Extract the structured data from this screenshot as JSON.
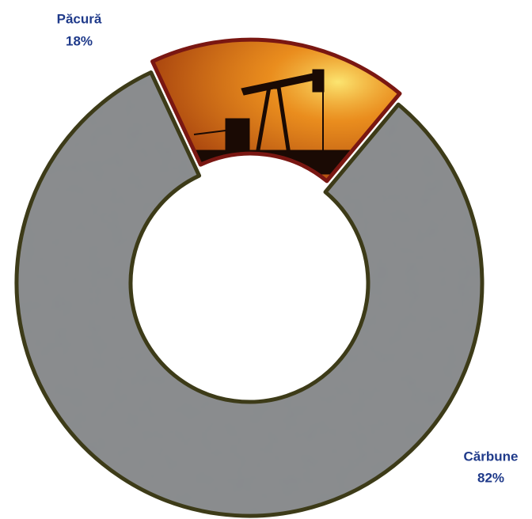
{
  "chart_data": {
    "type": "donut",
    "categories": [
      "Păcură",
      "Cărbune"
    ],
    "values": [
      18,
      82
    ],
    "value_labels": [
      "18%",
      "82%"
    ],
    "colors": [
      "#e0701a",
      "#8a8c8e"
    ],
    "edge_colors": [
      "#7a1712",
      "#3d3b18"
    ]
  }
}
